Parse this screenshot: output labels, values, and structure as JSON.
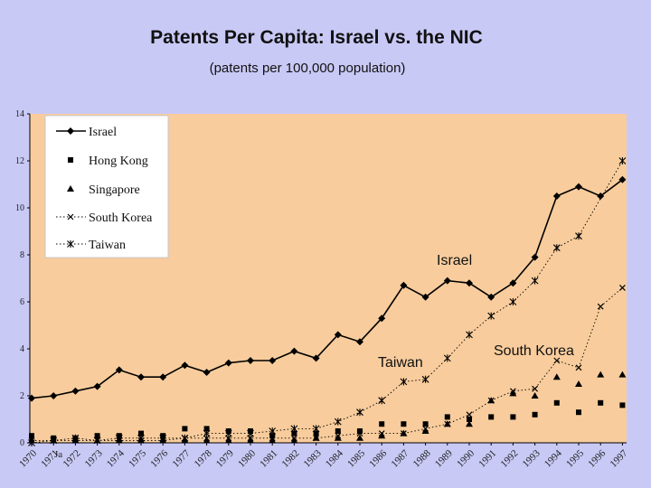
{
  "title": "Patents Per Capita: Israel vs. the NIC",
  "subtitle": "(patents per 100,000 population)",
  "chart_data": {
    "type": "line",
    "x": [
      1970,
      1971,
      1972,
      1973,
      1974,
      1975,
      1976,
      1977,
      1978,
      1979,
      1980,
      1981,
      1982,
      1983,
      1984,
      1985,
      1986,
      1987,
      1988,
      1989,
      1990,
      1991,
      1992,
      1993,
      1994,
      1995,
      1996,
      1997
    ],
    "x_tick_labels": [
      "1970",
      "1971",
      "1972",
      "1973",
      "1974",
      "1975",
      "1976",
      "1977",
      "1978",
      "1979",
      "1980",
      "1981",
      "1982",
      "1983",
      "1984",
      "1985",
      "1986",
      "1987",
      "1988",
      "1989",
      "1990",
      "1991",
      "1992",
      "1993",
      "1994",
      "1995",
      "1996",
      "1997"
    ],
    "stray_label": "Ja",
    "ylim": [
      0,
      14
    ],
    "y_ticks": [
      0,
      2,
      4,
      6,
      8,
      10,
      12,
      14
    ],
    "series": [
      {
        "name": "Israel",
        "marker": "diamond",
        "line": "solid",
        "values": [
          1.9,
          2.0,
          2.2,
          2.4,
          3.1,
          2.8,
          2.8,
          3.3,
          3.0,
          3.4,
          3.5,
          3.5,
          3.9,
          3.6,
          4.6,
          4.3,
          5.3,
          6.7,
          6.2,
          6.9,
          6.8,
          6.2,
          6.8,
          7.9,
          10.5,
          10.9,
          10.5,
          11.2
        ]
      },
      {
        "name": "Hong Kong",
        "marker": "square",
        "line": "none",
        "values": [
          0.3,
          0.2,
          0.2,
          0.3,
          0.3,
          0.4,
          0.3,
          0.6,
          0.6,
          0.5,
          0.5,
          0.3,
          0.4,
          0.4,
          0.5,
          0.5,
          0.8,
          0.8,
          0.8,
          1.1,
          1.0,
          1.1,
          1.1,
          1.2,
          1.7,
          1.3,
          1.7,
          1.6
        ]
      },
      {
        "name": "Singapore",
        "marker": "triangle",
        "line": "none",
        "values": [
          0.1,
          0.1,
          0.1,
          0.1,
          0.1,
          0.1,
          0.1,
          0.1,
          0.1,
          0.1,
          0.1,
          0.1,
          0.1,
          0.2,
          0.2,
          0.2,
          0.3,
          0.4,
          0.5,
          0.8,
          0.8,
          1.8,
          2.1,
          2.0,
          2.8,
          2.5,
          2.9,
          2.9
        ]
      },
      {
        "name": "South Korea",
        "marker": "x",
        "line": "dotted",
        "values": [
          0.1,
          0.1,
          0.1,
          0.1,
          0.1,
          0.1,
          0.1,
          0.2,
          0.2,
          0.2,
          0.2,
          0.2,
          0.2,
          0.2,
          0.3,
          0.4,
          0.4,
          0.4,
          0.6,
          0.8,
          1.2,
          1.8,
          2.2,
          2.3,
          3.5,
          3.2,
          5.8,
          6.6
        ]
      },
      {
        "name": "Taiwan",
        "marker": "asterisk",
        "line": "dotted",
        "values": [
          0.0,
          0.1,
          0.2,
          0.1,
          0.2,
          0.2,
          0.2,
          0.2,
          0.4,
          0.4,
          0.4,
          0.5,
          0.6,
          0.6,
          0.9,
          1.3,
          1.8,
          2.6,
          2.7,
          3.6,
          4.6,
          5.4,
          6.0,
          6.9,
          8.3,
          8.8,
          null,
          12.0
        ]
      }
    ],
    "legend": "upper-left inset",
    "annotations": [
      "Israel",
      "Taiwan",
      "South Korea"
    ],
    "grid": false
  }
}
